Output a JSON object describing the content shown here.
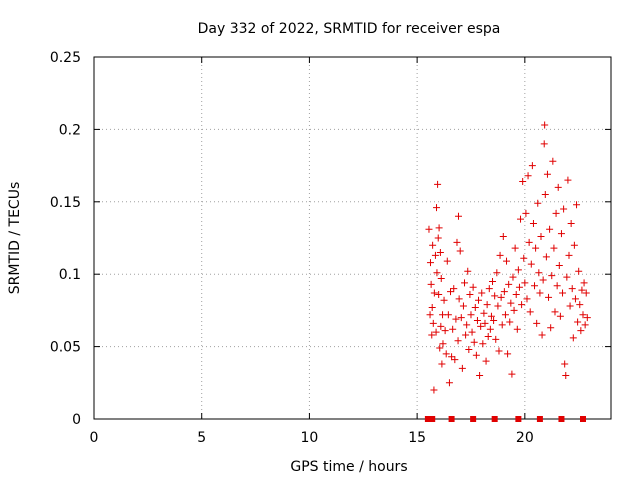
{
  "chart_data": {
    "type": "scatter",
    "title": "Day 332 of 2022, SRMTID for receiver espa",
    "xlabel": "GPS time / hours",
    "ylabel": "SRMTID / TECUs",
    "xlim": [
      0,
      24
    ],
    "ylim": [
      0,
      0.25
    ],
    "x_ticks": [
      0,
      5,
      10,
      15,
      20
    ],
    "x_tick_labels": [
      "0",
      "5",
      "10",
      "15",
      "20"
    ],
    "y_ticks": [
      0,
      0.05,
      0.1,
      0.15,
      0.2,
      0.25
    ],
    "y_tick_labels": [
      "0",
      "0.05",
      "0.1",
      "0.15",
      "0.2",
      "0.25"
    ],
    "grid": true,
    "marker": "+",
    "marker_color": "#e00000",
    "series": [
      {
        "name": "SRMTID",
        "points": [
          [
            15.55,
            0.131
          ],
          [
            15.6,
            0.072
          ],
          [
            15.62,
            0.108
          ],
          [
            15.65,
            0.093
          ],
          [
            15.68,
            0.058
          ],
          [
            15.7,
            0.077
          ],
          [
            15.72,
            0.12
          ],
          [
            15.75,
            0.066
          ],
          [
            15.78,
            0.02
          ],
          [
            15.8,
            0.087
          ],
          [
            15.85,
            0.113
          ],
          [
            15.88,
            0.06
          ],
          [
            15.9,
            0.146
          ],
          [
            15.92,
            0.101
          ],
          [
            15.95,
            0.162
          ],
          [
            15.98,
            0.125
          ],
          [
            16.0,
            0.086
          ],
          [
            16.02,
            0.132
          ],
          [
            16.05,
            0.049
          ],
          [
            16.08,
            0.115
          ],
          [
            16.1,
            0.064
          ],
          [
            16.12,
            0.097
          ],
          [
            16.15,
            0.038
          ],
          [
            16.18,
            0.072
          ],
          [
            16.2,
            0.052
          ],
          [
            16.25,
            0.082
          ],
          [
            16.3,
            0.061
          ],
          [
            16.35,
            0.045
          ],
          [
            16.4,
            0.109
          ],
          [
            16.45,
            0.072
          ],
          [
            16.5,
            0.025
          ],
          [
            16.55,
            0.088
          ],
          [
            16.6,
            0.043
          ],
          [
            16.65,
            0.062
          ],
          [
            16.7,
            0.09
          ],
          [
            16.75,
            0.041
          ],
          [
            16.8,
            0.069
          ],
          [
            16.85,
            0.122
          ],
          [
            16.9,
            0.054
          ],
          [
            16.92,
            0.14
          ],
          [
            16.95,
            0.083
          ],
          [
            17.0,
            0.116
          ],
          [
            17.05,
            0.07
          ],
          [
            17.1,
            0.035
          ],
          [
            17.15,
            0.078
          ],
          [
            17.2,
            0.094
          ],
          [
            17.25,
            0.058
          ],
          [
            17.3,
            0.065
          ],
          [
            17.35,
            0.102
          ],
          [
            17.4,
            0.048
          ],
          [
            17.45,
            0.086
          ],
          [
            17.5,
            0.072
          ],
          [
            17.55,
            0.06
          ],
          [
            17.6,
            0.091
          ],
          [
            17.65,
            0.053
          ],
          [
            17.7,
            0.077
          ],
          [
            17.75,
            0.044
          ],
          [
            17.8,
            0.068
          ],
          [
            17.85,
            0.082
          ],
          [
            17.9,
            0.03
          ],
          [
            17.95,
            0.064
          ],
          [
            18.0,
            0.087
          ],
          [
            18.05,
            0.052
          ],
          [
            18.1,
            0.073
          ],
          [
            18.15,
            0.066
          ],
          [
            18.2,
            0.04
          ],
          [
            18.25,
            0.079
          ],
          [
            18.3,
            0.057
          ],
          [
            18.35,
            0.09
          ],
          [
            18.4,
            0.062
          ],
          [
            18.45,
            0.071
          ],
          [
            18.5,
            0.095
          ],
          [
            18.55,
            0.068
          ],
          [
            18.6,
            0.085
          ],
          [
            18.65,
            0.055
          ],
          [
            18.7,
            0.101
          ],
          [
            18.75,
            0.078
          ],
          [
            18.8,
            0.047
          ],
          [
            18.85,
            0.113
          ],
          [
            18.9,
            0.084
          ],
          [
            18.95,
            0.065
          ],
          [
            19.0,
            0.126
          ],
          [
            19.05,
            0.088
          ],
          [
            19.1,
            0.072
          ],
          [
            19.15,
            0.109
          ],
          [
            19.2,
            0.045
          ],
          [
            19.25,
            0.093
          ],
          [
            19.3,
            0.067
          ],
          [
            19.35,
            0.08
          ],
          [
            19.4,
            0.031
          ],
          [
            19.45,
            0.098
          ],
          [
            19.5,
            0.075
          ],
          [
            19.55,
            0.118
          ],
          [
            19.6,
            0.086
          ],
          [
            19.65,
            0.062
          ],
          [
            19.7,
            0.103
          ],
          [
            19.75,
            0.091
          ],
          [
            19.8,
            0.138
          ],
          [
            19.85,
            0.079
          ],
          [
            19.9,
            0.164
          ],
          [
            19.95,
            0.111
          ],
          [
            20.0,
            0.094
          ],
          [
            20.05,
            0.142
          ],
          [
            20.1,
            0.083
          ],
          [
            20.15,
            0.168
          ],
          [
            20.2,
            0.122
          ],
          [
            20.25,
            0.074
          ],
          [
            20.3,
            0.107
          ],
          [
            20.35,
            0.175
          ],
          [
            20.4,
            0.135
          ],
          [
            20.45,
            0.092
          ],
          [
            20.5,
            0.118
          ],
          [
            20.55,
            0.066
          ],
          [
            20.6,
            0.149
          ],
          [
            20.65,
            0.101
          ],
          [
            20.7,
            0.087
          ],
          [
            20.75,
            0.126
          ],
          [
            20.8,
            0.058
          ],
          [
            20.85,
            0.096
          ],
          [
            20.9,
            0.19
          ],
          [
            20.92,
            0.203
          ],
          [
            20.95,
            0.155
          ],
          [
            21.0,
            0.112
          ],
          [
            21.05,
            0.169
          ],
          [
            21.1,
            0.084
          ],
          [
            21.15,
            0.131
          ],
          [
            21.2,
            0.063
          ],
          [
            21.25,
            0.099
          ],
          [
            21.3,
            0.178
          ],
          [
            21.35,
            0.118
          ],
          [
            21.4,
            0.074
          ],
          [
            21.45,
            0.142
          ],
          [
            21.5,
            0.092
          ],
          [
            21.55,
            0.16
          ],
          [
            21.6,
            0.106
          ],
          [
            21.65,
            0.071
          ],
          [
            21.7,
            0.128
          ],
          [
            21.75,
            0.087
          ],
          [
            21.8,
            0.145
          ],
          [
            21.85,
            0.038
          ],
          [
            21.9,
            0.03
          ],
          [
            21.95,
            0.098
          ],
          [
            22.0,
            0.165
          ],
          [
            22.05,
            0.113
          ],
          [
            22.1,
            0.078
          ],
          [
            22.15,
            0.135
          ],
          [
            22.2,
            0.09
          ],
          [
            22.25,
            0.056
          ],
          [
            22.3,
            0.12
          ],
          [
            22.35,
            0.083
          ],
          [
            22.4,
            0.148
          ],
          [
            22.45,
            0.067
          ],
          [
            22.5,
            0.102
          ],
          [
            22.55,
            0.079
          ],
          [
            22.6,
            0.061
          ],
          [
            22.65,
            0.089
          ],
          [
            22.7,
            0.072
          ],
          [
            22.75,
            0.094
          ],
          [
            22.8,
            0.065
          ],
          [
            22.85,
            0.087
          ],
          [
            22.9,
            0.07
          ]
        ]
      }
    ],
    "baseline_markers": {
      "name": "data-availability",
      "y": 0,
      "x": [
        15.5,
        15.6,
        15.7,
        16.6,
        17.6,
        18.6,
        19.7,
        20.7,
        21.7,
        22.7
      ]
    }
  }
}
